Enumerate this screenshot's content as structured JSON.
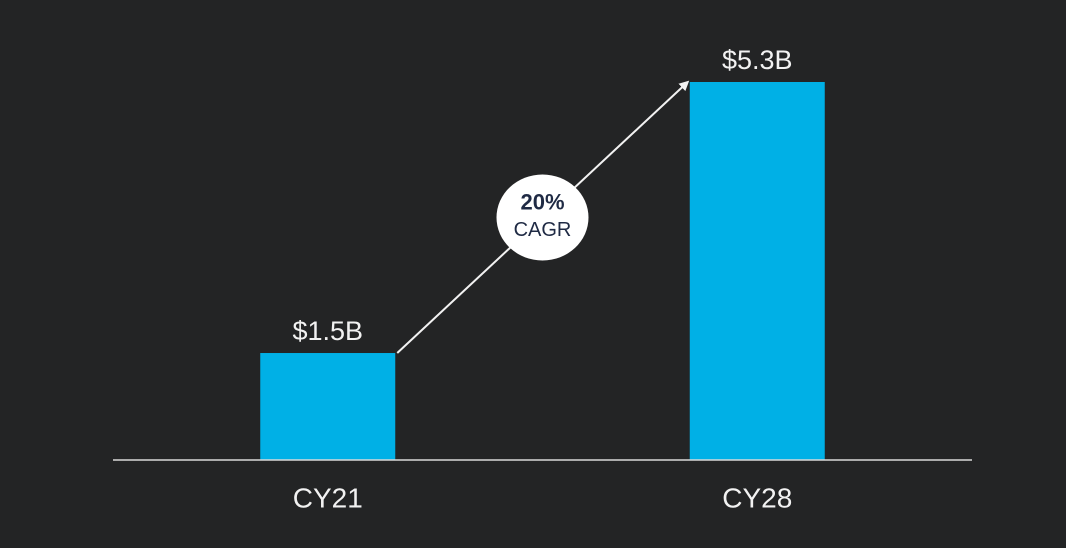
{
  "chart_data": {
    "type": "bar",
    "categories": [
      "CY21",
      "CY28"
    ],
    "values": [
      1.5,
      5.3
    ],
    "value_labels": [
      "$1.5B",
      "$5.3B"
    ],
    "color": "#00b0e6",
    "annotations": [
      "20%",
      "CAGR"
    ]
  }
}
